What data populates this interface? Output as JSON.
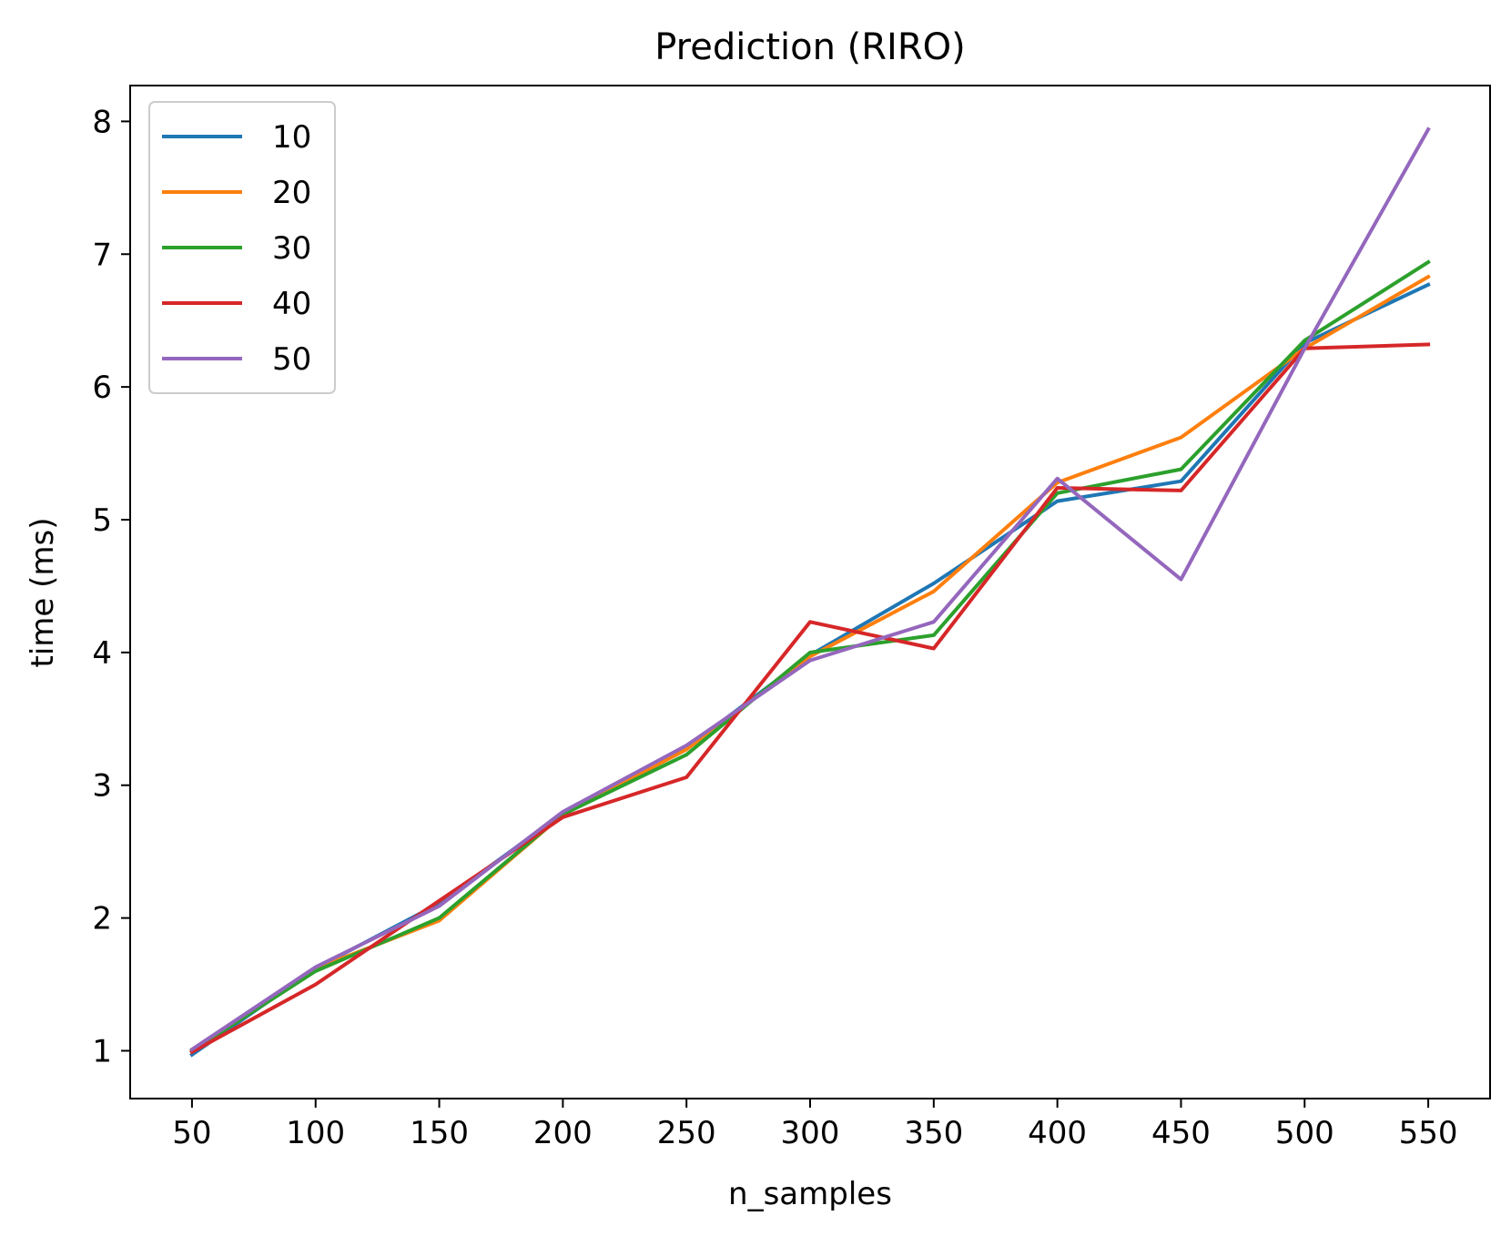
{
  "chart_data": {
    "type": "line",
    "title": "Prediction (RIRO)",
    "xlabel": "n_samples",
    "ylabel": "time (ms)",
    "x": [
      50,
      100,
      150,
      200,
      250,
      300,
      350,
      400,
      450,
      500,
      550
    ],
    "xticks": [
      "50",
      "100",
      "150",
      "200",
      "250",
      "300",
      "350",
      "400",
      "450",
      "500",
      "550"
    ],
    "yticks": [
      "1",
      "2",
      "3",
      "4",
      "5",
      "6",
      "7",
      "8"
    ],
    "xlim": [
      25,
      575
    ],
    "ylim": [
      0.64,
      8.27
    ],
    "grid": false,
    "legend_position": "top-left",
    "series": [
      {
        "name": "10",
        "color": "#1f77b4",
        "values": [
          0.97,
          1.62,
          2.11,
          2.79,
          3.28,
          3.98,
          4.52,
          5.14,
          5.29,
          6.33,
          6.77
        ]
      },
      {
        "name": "20",
        "color": "#ff7f0e",
        "values": [
          1.0,
          1.62,
          1.98,
          2.78,
          3.27,
          3.97,
          4.46,
          5.28,
          5.62,
          6.29,
          6.83
        ]
      },
      {
        "name": "30",
        "color": "#2ca02c",
        "values": [
          1.0,
          1.6,
          2.0,
          2.78,
          3.23,
          4.0,
          4.13,
          5.2,
          5.38,
          6.35,
          6.94
        ]
      },
      {
        "name": "40",
        "color": "#d62728",
        "values": [
          0.99,
          1.5,
          2.13,
          2.76,
          3.06,
          4.23,
          4.03,
          5.24,
          5.22,
          6.29,
          6.32
        ]
      },
      {
        "name": "50",
        "color": "#9467bd",
        "values": [
          1.01,
          1.63,
          2.09,
          2.8,
          3.3,
          3.94,
          4.23,
          5.31,
          4.55,
          6.29,
          7.94
        ]
      }
    ]
  }
}
